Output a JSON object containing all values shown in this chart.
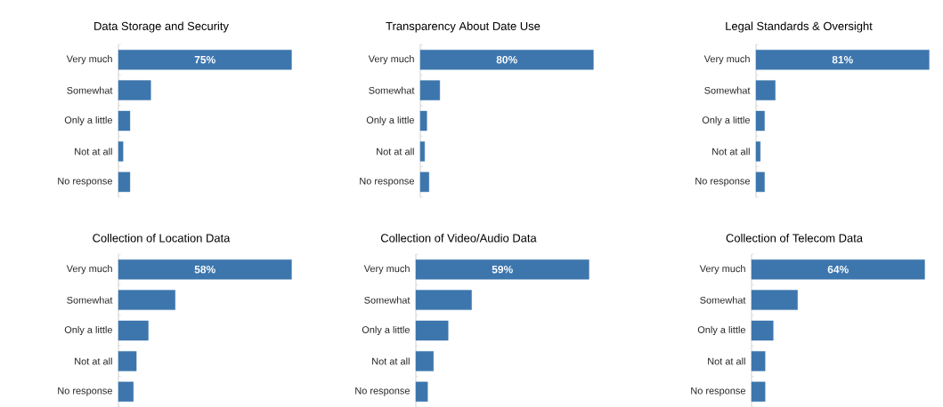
{
  "chart_data": [
    {
      "type": "bar",
      "orientation": "horizontal",
      "title": "Data Storage and Security",
      "categories": [
        "Very much",
        "Somewhat",
        "Only a little",
        "Not at all",
        "No response"
      ],
      "values": [
        75,
        14,
        5,
        2,
        5
      ],
      "value_labels": [
        "75%",
        null,
        null,
        null,
        null
      ],
      "color": "#3d76ad"
    },
    {
      "type": "bar",
      "orientation": "horizontal",
      "title": "Transparency About Date Use",
      "categories": [
        "Very much",
        "Somewhat",
        "Only a little",
        "Not at all",
        "No response"
      ],
      "values": [
        80,
        9,
        3,
        2,
        4
      ],
      "value_labels": [
        "80%",
        null,
        null,
        null,
        null
      ],
      "color": "#3d76ad"
    },
    {
      "type": "bar",
      "orientation": "horizontal",
      "title": "Legal Standards & Oversight",
      "categories": [
        "Very much",
        "Somewhat",
        "Only a little",
        "Not at all",
        "No response"
      ],
      "values": [
        81,
        9,
        4,
        2,
        4
      ],
      "value_labels": [
        "81%",
        null,
        null,
        null,
        null
      ],
      "color": "#3d76ad"
    },
    {
      "type": "bar",
      "orientation": "horizontal",
      "title": "Collection of Location Data",
      "categories": [
        "Very much",
        "Somewhat",
        "Only a little",
        "Not at all",
        "No response"
      ],
      "values": [
        58,
        19,
        10,
        6,
        5
      ],
      "value_labels": [
        "58%",
        null,
        null,
        null,
        null
      ],
      "color": "#3d76ad"
    },
    {
      "type": "bar",
      "orientation": "horizontal",
      "title": "Collection of Video/Audio Data",
      "categories": [
        "Very much",
        "Somewhat",
        "Only a little",
        "Not at all",
        "No response"
      ],
      "values": [
        59,
        19,
        11,
        6,
        4
      ],
      "value_labels": [
        "59%",
        null,
        null,
        null,
        null
      ],
      "color": "#3d76ad"
    },
    {
      "type": "bar",
      "orientation": "horizontal",
      "title": "Collection of Telecom Data",
      "categories": [
        "Very much",
        "Somewhat",
        "Only a little",
        "Not at all",
        "No response"
      ],
      "values": [
        64,
        17,
        8,
        5,
        5
      ],
      "value_labels": [
        "64%",
        null,
        null,
        null,
        null
      ],
      "color": "#3d76ad"
    }
  ]
}
